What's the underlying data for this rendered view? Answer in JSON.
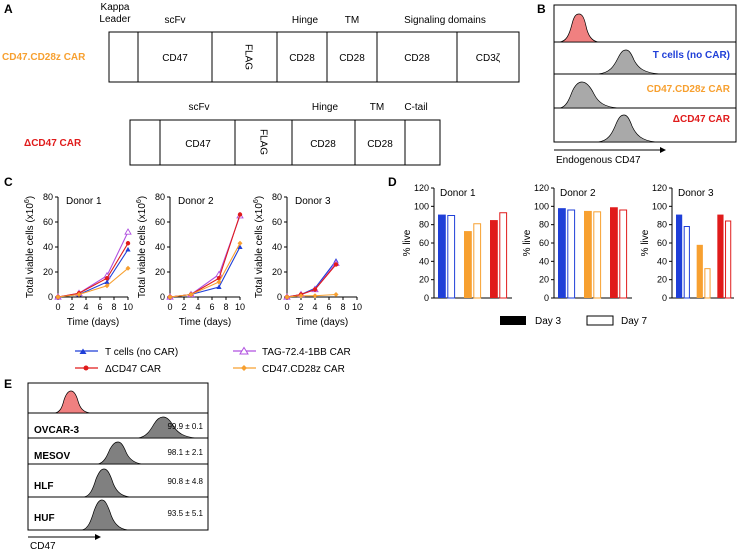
{
  "panels": {
    "A": "A",
    "B": "B",
    "C": "C",
    "D": "D",
    "E": "E"
  },
  "colors": {
    "orange": "#f7a030",
    "red": "#e01b1b",
    "blue": "#1f3fd8",
    "purple": "#b050e0",
    "pink": "#f08080",
    "gray": "#a9a9a9"
  },
  "panelA": {
    "construct1": {
      "name": "CD47.CD28z CAR",
      "top_labels": {
        "leader": "Kappa",
        "leader2": "Leader",
        "scfv": "scFv",
        "hinge": "Hinge",
        "tm": "TM",
        "signaling": "Signaling domains"
      },
      "segments": [
        "",
        "CD47",
        "FLAG",
        "CD28",
        "CD28",
        "CD28",
        "CD3ζ"
      ]
    },
    "construct2": {
      "name": "ΔCD47 CAR",
      "top_labels": {
        "scfv": "scFv",
        "hinge": "Hinge",
        "tm": "TM",
        "ctail": "C-tail"
      },
      "segments": [
        "",
        "CD47",
        "FLAG",
        "CD28",
        "CD28",
        ""
      ]
    }
  },
  "panelB": {
    "labels": [
      "T cells (no CAR)",
      "CD47.CD28z CAR",
      "ΔCD47 CAR"
    ],
    "xlabel": "Endogenous CD47"
  },
  "panelC": {
    "ylabel": "Total viable cells (x10",
    "ylabel_sup": "6",
    "ylabel_end": ")",
    "xlabel": "Time (days)",
    "x_ticks": [
      "0",
      "2",
      "4",
      "6",
      "8",
      "10"
    ],
    "y_ticks": [
      "0",
      "20",
      "40",
      "60",
      "80"
    ],
    "legend": [
      "T cells (no CAR)",
      "TAG-72.4-1BB CAR",
      "ΔCD47 CAR",
      "CD47.CD28z CAR"
    ]
  },
  "panelD": {
    "ylabel": "% live",
    "y_ticks": [
      "0",
      "20",
      "40",
      "60",
      "80",
      "100",
      "120"
    ],
    "legend": [
      "Day 3",
      "Day 7"
    ]
  },
  "panelE": {
    "xlabel": "CD47",
    "rows": [
      {
        "name": "OVCAR-3",
        "stat": "99.9 ± 0.1"
      },
      {
        "name": "MESOV",
        "stat": "98.1 ± 2.1"
      },
      {
        "name": "HLF",
        "stat": "90.8 ± 4.8"
      },
      {
        "name": "HUF",
        "stat": "93.5 ± 5.1"
      }
    ]
  },
  "chart_data": [
    {
      "type": "line",
      "panel": "C",
      "title": "Donor 1",
      "xlabel": "Time (days)",
      "ylabel": "Total viable cells (x10^6)",
      "xlim": [
        0,
        10
      ],
      "ylim": [
        0,
        80
      ],
      "series": [
        {
          "name": "T cells (no CAR)",
          "x": [
            0,
            3,
            7,
            10
          ],
          "y": [
            0,
            2,
            12,
            38
          ]
        },
        {
          "name": "TAG-72.4-1BB CAR",
          "x": [
            0,
            3,
            7,
            10
          ],
          "y": [
            0,
            3,
            17,
            52
          ]
        },
        {
          "name": "ΔCD47 CAR",
          "x": [
            0,
            3,
            7,
            10
          ],
          "y": [
            0,
            3,
            15,
            43
          ]
        },
        {
          "name": "CD47.CD28z CAR",
          "x": [
            0,
            3,
            7,
            10
          ],
          "y": [
            0,
            2,
            9,
            23
          ]
        }
      ]
    },
    {
      "type": "line",
      "panel": "C",
      "title": "Donor 2",
      "xlabel": "Time (days)",
      "ylabel": "Total viable cells (x10^6)",
      "xlim": [
        0,
        10
      ],
      "ylim": [
        0,
        80
      ],
      "series": [
        {
          "name": "T cells (no CAR)",
          "x": [
            0,
            3,
            7,
            10
          ],
          "y": [
            0,
            2,
            8,
            40
          ]
        },
        {
          "name": "TAG-72.4-1BB CAR",
          "x": [
            0,
            3,
            7,
            10
          ],
          "y": [
            0,
            2,
            18,
            65
          ]
        },
        {
          "name": "ΔCD47 CAR",
          "x": [
            0,
            3,
            7,
            10
          ],
          "y": [
            0,
            2,
            15,
            66
          ]
        },
        {
          "name": "CD47.CD28z CAR",
          "x": [
            0,
            3,
            7,
            10
          ],
          "y": [
            0,
            2,
            12,
            43
          ]
        }
      ]
    },
    {
      "type": "line",
      "panel": "C",
      "title": "Donor 3",
      "xlabel": "Time (days)",
      "ylabel": "Total viable cells (x10^6)",
      "xlim": [
        0,
        10
      ],
      "ylim": [
        0,
        80
      ],
      "series": [
        {
          "name": "T cells (no CAR)",
          "x": [
            0,
            2,
            4,
            7
          ],
          "y": [
            0,
            2,
            7,
            29
          ]
        },
        {
          "name": "TAG-72.4-1BB CAR",
          "x": [
            0,
            2,
            4,
            7
          ],
          "y": [
            0,
            2,
            6,
            27
          ]
        },
        {
          "name": "ΔCD47 CAR",
          "x": [
            0,
            2,
            4,
            7
          ],
          "y": [
            0,
            2,
            6,
            26
          ]
        },
        {
          "name": "CD47.CD28z CAR",
          "x": [
            0,
            2,
            4,
            7
          ],
          "y": [
            0,
            1,
            1,
            2
          ]
        }
      ]
    },
    {
      "type": "bar",
      "panel": "D",
      "title": "Donor 1",
      "ylabel": "% live",
      "ylim": [
        0,
        120
      ],
      "categories": [
        "T cells (no CAR)",
        "CD47.CD28z CAR",
        "ΔCD47 CAR"
      ],
      "series": [
        {
          "name": "Day 3",
          "values": [
            91,
            73,
            85
          ]
        },
        {
          "name": "Day 7",
          "values": [
            90,
            81,
            93
          ]
        }
      ]
    },
    {
      "type": "bar",
      "panel": "D",
      "title": "Donor 2",
      "ylabel": "% live",
      "ylim": [
        0,
        120
      ],
      "categories": [
        "T cells (no CAR)",
        "CD47.CD28z CAR",
        "ΔCD47 CAR"
      ],
      "series": [
        {
          "name": "Day 3",
          "values": [
            98,
            95,
            99
          ]
        },
        {
          "name": "Day 7",
          "values": [
            96,
            94,
            96
          ]
        }
      ]
    },
    {
      "type": "bar",
      "panel": "D",
      "title": "Donor 3",
      "ylabel": "% live",
      "ylim": [
        0,
        120
      ],
      "categories": [
        "T cells (no CAR)",
        "CD47.CD28z CAR",
        "ΔCD47 CAR"
      ],
      "series": [
        {
          "name": "Day 3",
          "values": [
            91,
            58,
            91
          ]
        },
        {
          "name": "Day 7",
          "values": [
            78,
            32,
            84
          ]
        }
      ]
    }
  ]
}
